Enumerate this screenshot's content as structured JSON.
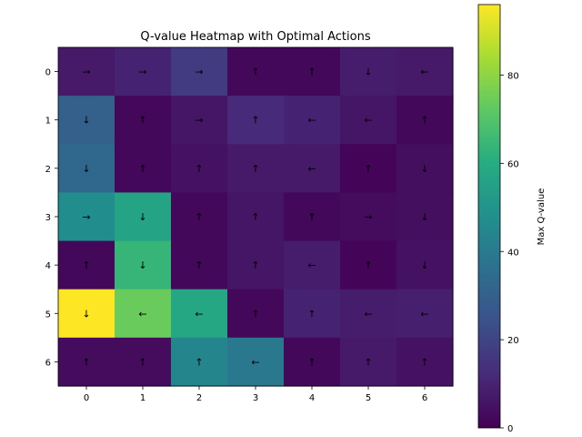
{
  "chart_data": {
    "type": "heatmap",
    "title": "Q-value Heatmap with Optimal Actions",
    "xlabel": "",
    "ylabel": "",
    "x_tick_labels": [
      "0",
      "1",
      "2",
      "3",
      "4",
      "5",
      "6"
    ],
    "y_tick_labels": [
      "0",
      "1",
      "2",
      "3",
      "4",
      "5",
      "6"
    ],
    "values": [
      [
        7,
        10,
        17,
        2,
        2,
        8,
        7
      ],
      [
        30,
        2,
        6,
        12,
        10,
        6,
        2
      ],
      [
        33,
        2,
        5,
        7,
        7,
        1,
        4
      ],
      [
        47,
        56,
        2,
        6,
        2,
        3,
        4
      ],
      [
        2,
        64,
        2,
        6,
        8,
        1,
        5
      ],
      [
        96,
        74,
        58,
        2,
        10,
        8,
        9
      ],
      [
        3,
        3,
        44,
        39,
        2,
        7,
        5
      ]
    ],
    "actions": [
      [
        "→",
        "→",
        "→",
        "↑",
        "↑",
        "↓",
        "←"
      ],
      [
        "↓",
        "↑",
        "→",
        "↑",
        "←",
        "←",
        "↑"
      ],
      [
        "↓",
        "↑",
        "↑",
        "↑",
        "←",
        "↑",
        "↓"
      ],
      [
        "→",
        "↓",
        "↑",
        "↑",
        "↑",
        "→",
        "↓"
      ],
      [
        "↑",
        "↓",
        "↑",
        "↑",
        "←",
        "↑",
        "↓"
      ],
      [
        "↓",
        "←",
        "←",
        "↑",
        "↑",
        "←",
        "←"
      ],
      [
        "↑",
        "↑",
        "↑",
        "←",
        "↑",
        "↑",
        "↑"
      ]
    ],
    "colorbar": {
      "label": "Max Q-value",
      "range": [
        0,
        96
      ],
      "ticks": [
        0,
        20,
        40,
        60,
        80
      ],
      "tick_labels": [
        "0",
        "20",
        "40",
        "60",
        "80"
      ],
      "colormap": "viridis"
    },
    "grid": false
  }
}
